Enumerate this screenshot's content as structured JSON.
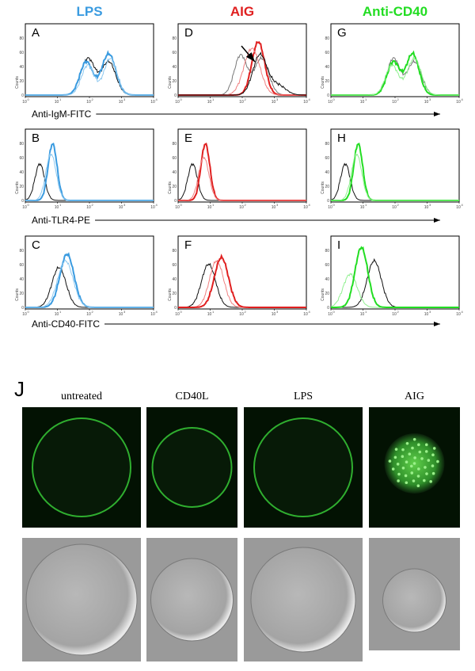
{
  "columns": [
    "LPS",
    "AIG",
    "Anti-CD40"
  ],
  "panels": [
    [
      "A",
      "D",
      "G"
    ],
    [
      "B",
      "E",
      "H"
    ],
    [
      "C",
      "F",
      "I"
    ]
  ],
  "row_axis_labels": [
    "Anti-IgM-FITC",
    "Anti-TLR4-PE",
    "Anti-CD40-FITC"
  ],
  "y_axis_label": "Counts",
  "y_ticks": [
    "0",
    "20",
    "40",
    "60",
    "80"
  ],
  "x_tick_base": "10",
  "x_tick_exponents": [
    "0",
    "1",
    "2",
    "3",
    "4"
  ],
  "microscopy": {
    "label": "J",
    "conditions": [
      "untreated",
      "CD40L",
      "LPS",
      "AIG"
    ]
  }
}
